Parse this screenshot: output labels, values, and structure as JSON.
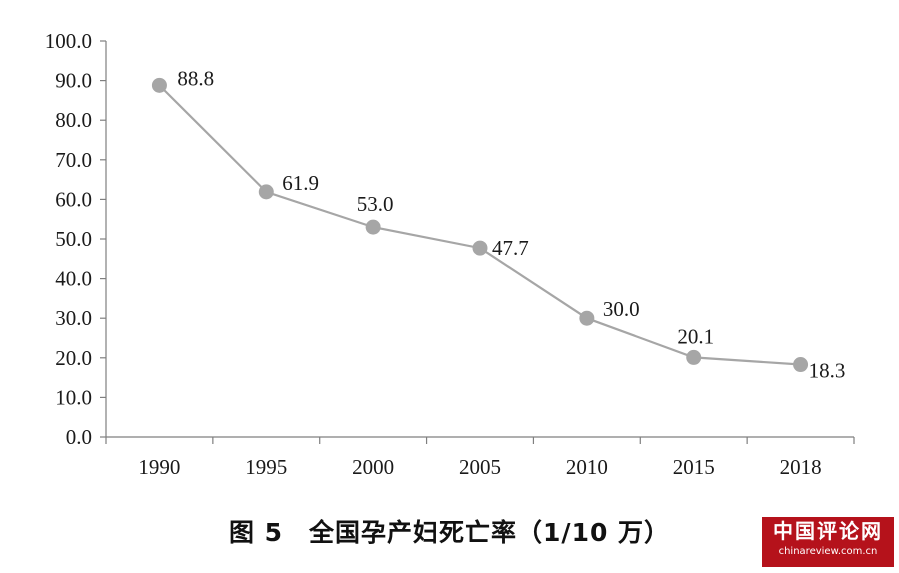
{
  "chart_data": {
    "type": "line",
    "categories": [
      "1990",
      "1995",
      "2000",
      "2005",
      "2010",
      "2015",
      "2018"
    ],
    "series": [
      {
        "values": [
          88.8,
          61.9,
          53.0,
          47.7,
          30.0,
          20.1,
          18.3
        ]
      }
    ],
    "data_labels": [
      "88.8",
      "61.9",
      "53.0",
      "47.7",
      "30.0",
      "20.1",
      "18.3"
    ],
    "y_ticks": [
      "0.0",
      "10.0",
      "20.0",
      "30.0",
      "40.0",
      "50.0",
      "60.0",
      "70.0",
      "80.0",
      "90.0",
      "100.0"
    ],
    "ylim": [
      0,
      100
    ],
    "grid": false,
    "legend": "none",
    "line_color": "#a6a6a6",
    "marker_color": "#a6a6a6",
    "axis_color": "#7f7f7f"
  },
  "caption": "图 5　全国孕产妇死亡率（1/10 万）",
  "watermark": {
    "title": "中国评论网",
    "url": "chinareview.com.cn",
    "color": "#b5121b"
  }
}
